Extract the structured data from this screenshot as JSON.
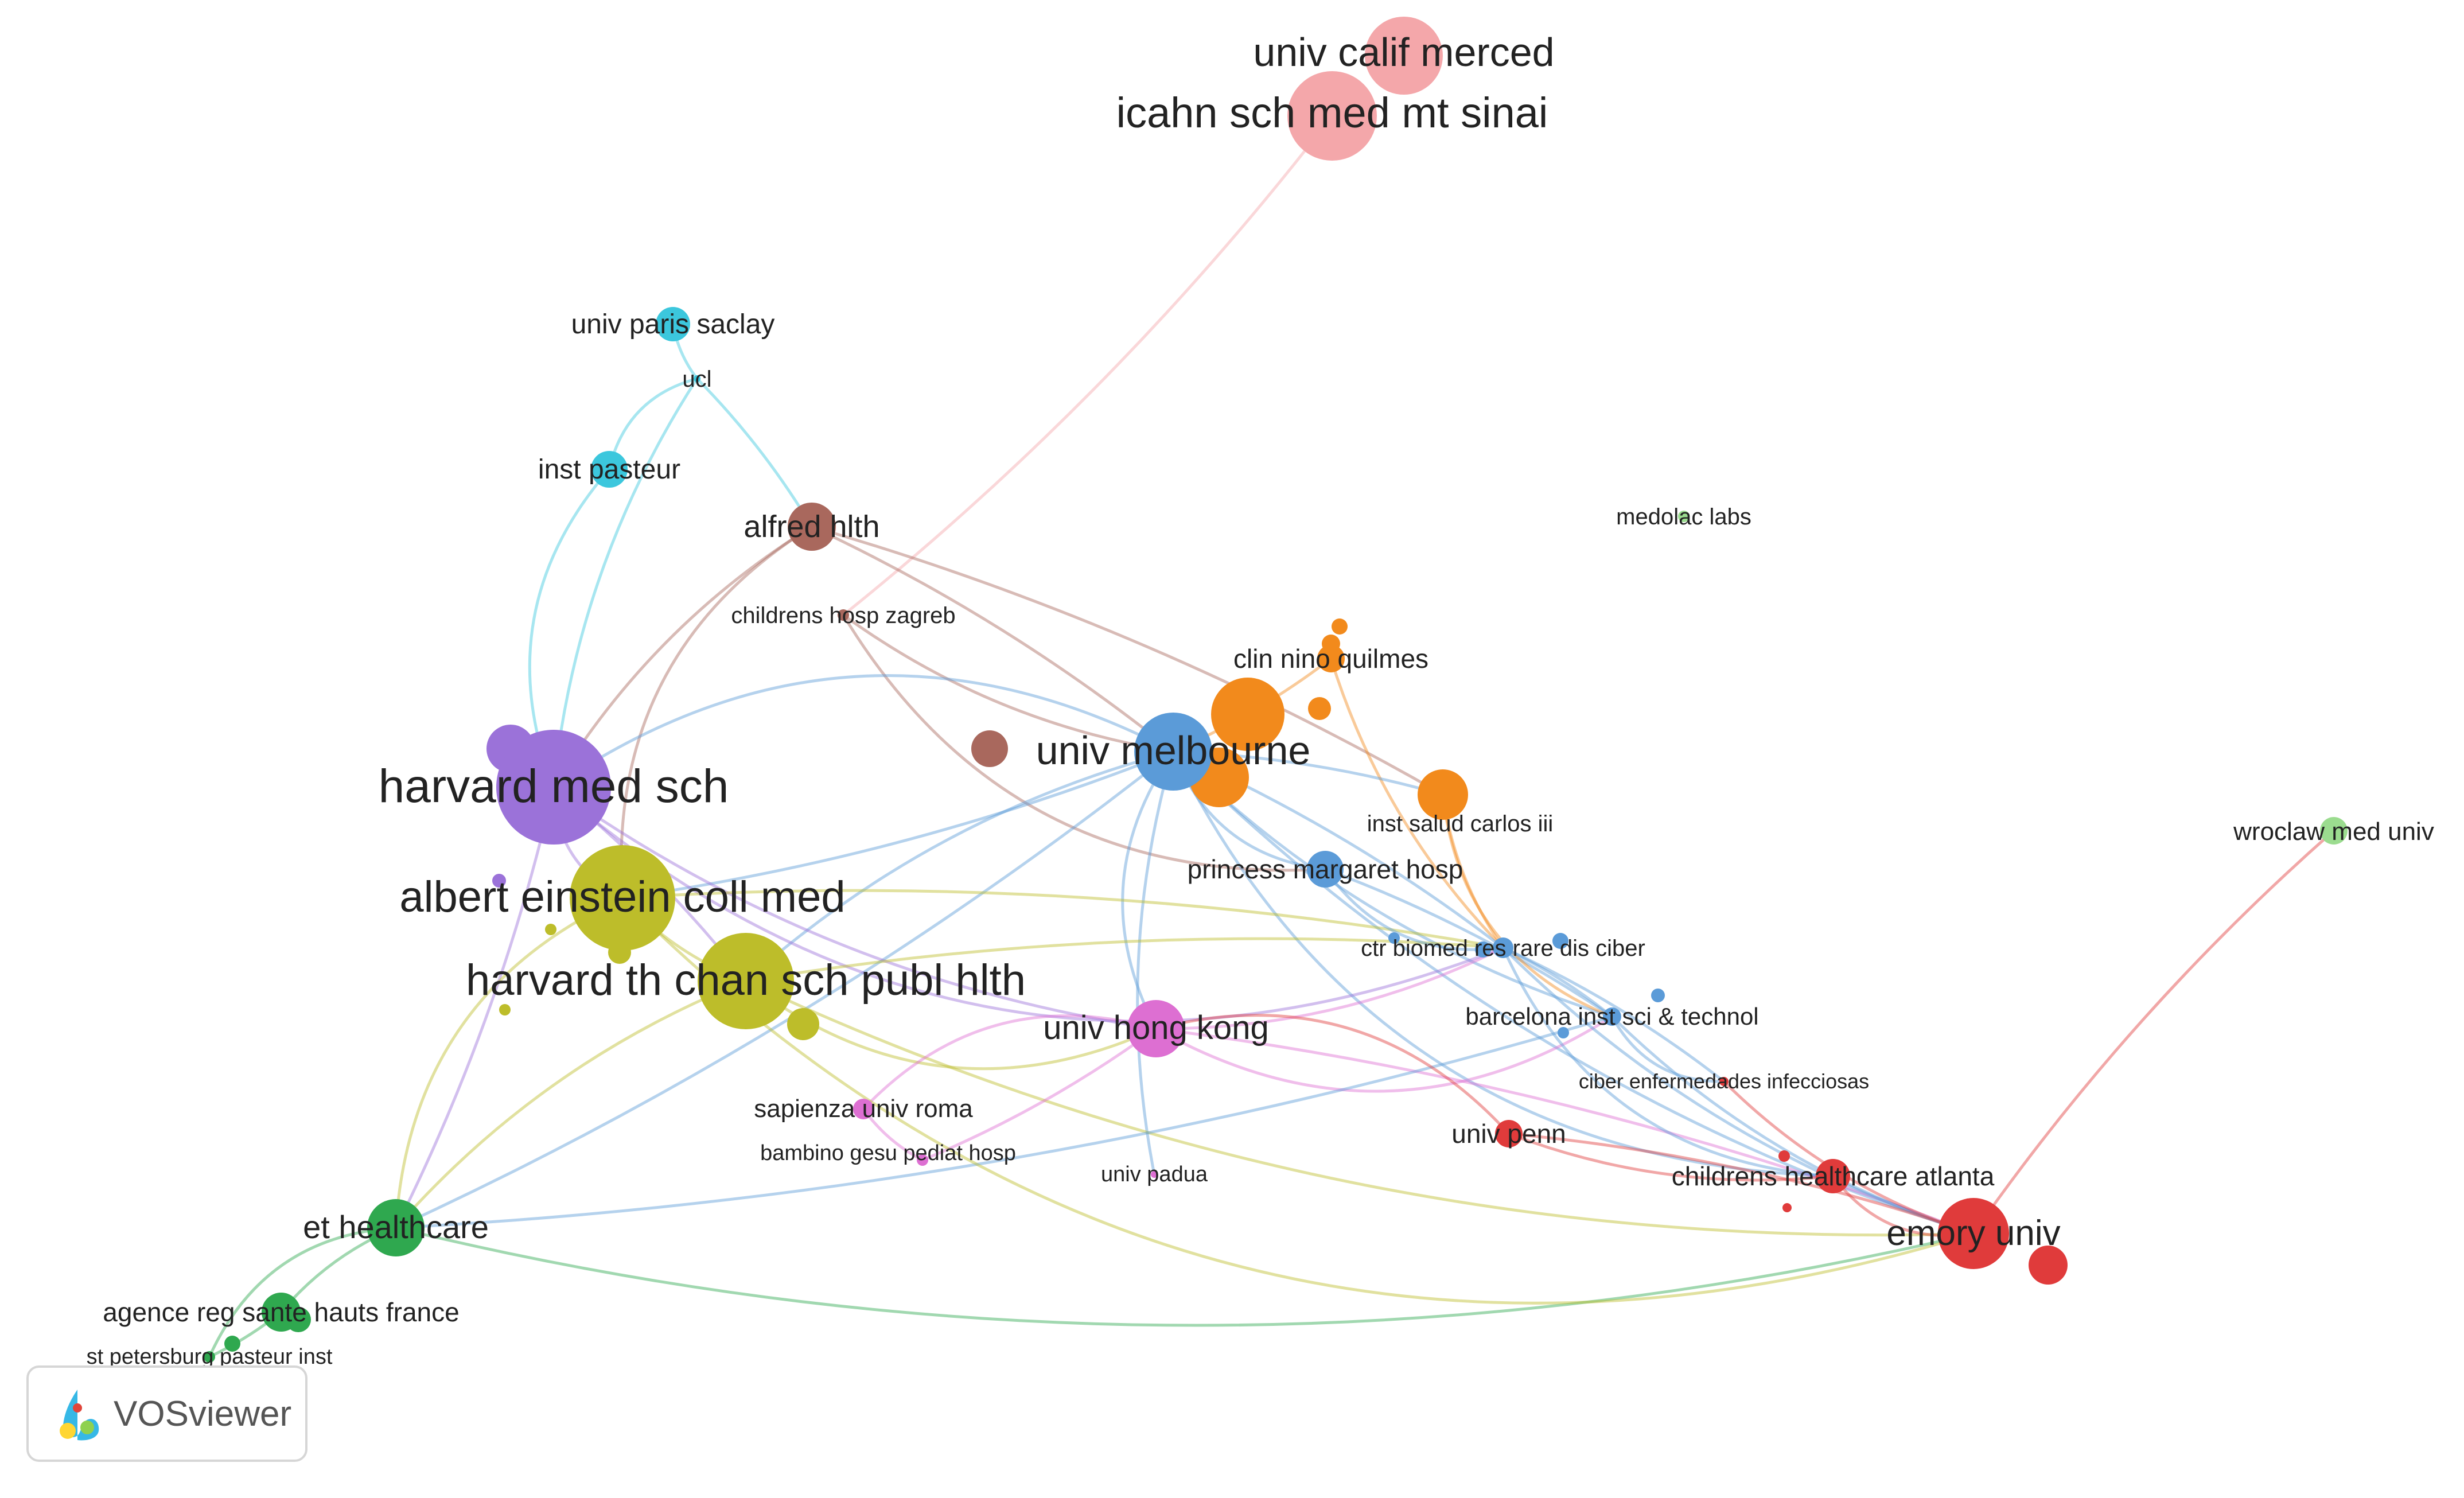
{
  "colors": {
    "pink": "#f4a7aa",
    "cyan": "#3cc7dd",
    "brown": "#a9685d",
    "purple": "#9b72d9",
    "olive": "#bdbd2a",
    "blue": "#5b9bd8",
    "orange": "#f28a1c",
    "magenta": "#dd6fd2",
    "green": "#2fa84f",
    "lightgreen": "#9bdc8f",
    "red": "#e03b3b"
  },
  "nodes": [
    {
      "id": "univ-calif-merced",
      "label": "univ calif merced",
      "color": "pink"
    },
    {
      "id": "icahn-sch-med-mt-sinai",
      "label": "icahn sch med mt sinai",
      "color": "pink"
    },
    {
      "id": "univ-paris-saclay",
      "label": "univ paris saclay",
      "color": "cyan"
    },
    {
      "id": "ucl",
      "label": "ucl",
      "color": "cyan"
    },
    {
      "id": "inst-pasteur",
      "label": "inst pasteur",
      "color": "cyan"
    },
    {
      "id": "alfred-hlth",
      "label": "alfred hlth",
      "color": "brown"
    },
    {
      "id": "childrens-hosp-zagreb",
      "label": "childrens hosp zagreb",
      "color": "brown"
    },
    {
      "id": "medolac-labs",
      "label": "medolac labs",
      "color": "lightgreen"
    },
    {
      "id": "clin-nino-quilmes",
      "label": "clin nino quilmes",
      "color": "orange"
    },
    {
      "id": "univ-melbourne",
      "label": "univ melbourne",
      "color": "blue"
    },
    {
      "id": "harvard-med-sch",
      "label": "harvard med sch",
      "color": "purple"
    },
    {
      "id": "inst-salud-carlos-iii",
      "label": "inst salud carlos iii",
      "color": "orange"
    },
    {
      "id": "wroclaw-med-univ",
      "label": "wroclaw med univ",
      "color": "lightgreen"
    },
    {
      "id": "princess-margaret-hosp",
      "label": "princess margaret hosp",
      "color": "blue"
    },
    {
      "id": "albert-einstein-coll-med",
      "label": "albert einstein coll med",
      "color": "olive"
    },
    {
      "id": "ctr-biomed-res-rare-dis-ciber",
      "label": "ctr biomed res rare dis ciber",
      "color": "blue"
    },
    {
      "id": "harvard-th-chan-sch-publ-hlth",
      "label": "harvard th chan sch publ hlth",
      "color": "olive"
    },
    {
      "id": "barcelona-inst-sci-technol",
      "label": "barcelona inst sci & technol",
      "color": "blue"
    },
    {
      "id": "univ-hong-kong",
      "label": "univ hong kong",
      "color": "magenta"
    },
    {
      "id": "ciber-enfermedades-infecciosas",
      "label": "ciber enfermedades infecciosas",
      "color": "red"
    },
    {
      "id": "sapienza-univ-roma",
      "label": "sapienza univ roma",
      "color": "magenta"
    },
    {
      "id": "univ-penn",
      "label": "univ penn",
      "color": "red"
    },
    {
      "id": "bambino-gesu-pediat-hosp",
      "label": "bambino gesu pediat hosp",
      "color": "magenta"
    },
    {
      "id": "univ-padua",
      "label": "univ padua",
      "color": "magenta"
    },
    {
      "id": "childrens-healthcare-atlanta",
      "label": "childrens healthcare atlanta",
      "color": "red"
    },
    {
      "id": "et-healthcare",
      "label": "et healthcare",
      "color": "green"
    },
    {
      "id": "emory-univ",
      "label": "emory univ",
      "color": "red"
    },
    {
      "id": "agence-reg-sante-hauts-france",
      "label": "agence reg sante hauts france",
      "color": "green"
    },
    {
      "id": "st-petersburg-pasteur-inst",
      "label": "st petersburg pasteur inst",
      "color": "green"
    }
  ],
  "links": [
    [
      "icahn-sch-med-mt-sinai",
      "childrens-hosp-zagreb"
    ],
    [
      "univ-paris-saclay",
      "ucl"
    ],
    [
      "ucl",
      "inst-pasteur"
    ],
    [
      "ucl",
      "alfred-hlth"
    ],
    [
      "ucl",
      "harvard-med-sch"
    ],
    [
      "inst-pasteur",
      "harvard-med-sch"
    ],
    [
      "alfred-hlth",
      "univ-melbourne"
    ],
    [
      "alfred-hlth",
      "harvard-med-sch"
    ],
    [
      "alfred-hlth",
      "albert-einstein-coll-med"
    ],
    [
      "alfred-hlth",
      "inst-salud-carlos-iii"
    ],
    [
      "childrens-hosp-zagreb",
      "univ-melbourne"
    ],
    [
      "childrens-hosp-zagreb",
      "princess-margaret-hosp"
    ],
    [
      "clin-nino-quilmes",
      "univ-melbourne"
    ],
    [
      "clin-nino-quilmes",
      "ctr-biomed-res-rare-dis-ciber"
    ],
    [
      "univ-melbourne",
      "harvard-med-sch"
    ],
    [
      "univ-melbourne",
      "albert-einstein-coll-med"
    ],
    [
      "univ-melbourne",
      "harvard-th-chan-sch-publ-hlth"
    ],
    [
      "univ-melbourne",
      "univ-hong-kong"
    ],
    [
      "univ-melbourne",
      "ctr-biomed-res-rare-dis-ciber"
    ],
    [
      "univ-melbourne",
      "barcelona-inst-sci-technol"
    ],
    [
      "univ-melbourne",
      "princess-margaret-hosp"
    ],
    [
      "univ-melbourne",
      "inst-salud-carlos-iii"
    ],
    [
      "univ-melbourne",
      "emory-univ"
    ],
    [
      "univ-melbourne",
      "childrens-healthcare-atlanta"
    ],
    [
      "univ-melbourne",
      "et-healthcare"
    ],
    [
      "univ-melbourne",
      "univ-padua"
    ],
    [
      "harvard-med-sch",
      "albert-einstein-coll-med"
    ],
    [
      "harvard-med-sch",
      "harvard-th-chan-sch-publ-hlth"
    ],
    [
      "harvard-med-sch",
      "univ-hong-kong"
    ],
    [
      "harvard-med-sch",
      "ctr-biomed-res-rare-dis-ciber"
    ],
    [
      "harvard-med-sch",
      "et-healthcare"
    ],
    [
      "albert-einstein-coll-med",
      "harvard-th-chan-sch-publ-hlth"
    ],
    [
      "albert-einstein-coll-med",
      "et-healthcare"
    ],
    [
      "albert-einstein-coll-med",
      "ctr-biomed-res-rare-dis-ciber"
    ],
    [
      "harvard-th-chan-sch-publ-hlth",
      "et-healthcare"
    ],
    [
      "harvard-th-chan-sch-publ-hlth",
      "univ-hong-kong"
    ],
    [
      "harvard-th-chan-sch-publ-hlth",
      "ctr-biomed-res-rare-dis-ciber"
    ],
    [
      "harvard-th-chan-sch-publ-hlth",
      "emory-univ"
    ],
    [
      "univ-hong-kong",
      "sapienza-univ-roma"
    ],
    [
      "univ-hong-kong",
      "bambino-gesu-pediat-hosp"
    ],
    [
      "univ-hong-kong",
      "ctr-biomed-res-rare-dis-ciber"
    ],
    [
      "univ-hong-kong",
      "barcelona-inst-sci-technol"
    ],
    [
      "univ-hong-kong",
      "emory-univ"
    ],
    [
      "sapienza-univ-roma",
      "bambino-gesu-pediat-hosp"
    ],
    [
      "princess-margaret-hosp",
      "ctr-biomed-res-rare-dis-ciber"
    ],
    [
      "princess-margaret-hosp",
      "barcelona-inst-sci-technol"
    ],
    [
      "inst-salud-carlos-iii",
      "ctr-biomed-res-rare-dis-ciber"
    ],
    [
      "inst-salud-carlos-iii",
      "barcelona-inst-sci-technol"
    ],
    [
      "ctr-biomed-res-rare-dis-ciber",
      "barcelona-inst-sci-technol"
    ],
    [
      "ctr-biomed-res-rare-dis-ciber",
      "emory-univ"
    ],
    [
      "ctr-biomed-res-rare-dis-ciber",
      "childrens-healthcare-atlanta"
    ],
    [
      "ctr-biomed-res-rare-dis-ciber",
      "ciber-enfermedades-infecciosas"
    ],
    [
      "barcelona-inst-sci-technol",
      "emory-univ"
    ],
    [
      "barcelona-inst-sci-technol",
      "ciber-enfermedades-infecciosas"
    ],
    [
      "barcelona-inst-sci-technol",
      "et-healthcare"
    ],
    [
      "ciber-enfermedades-infecciosas",
      "emory-univ"
    ],
    [
      "childrens-healthcare-atlanta",
      "emory-univ"
    ],
    [
      "univ-penn",
      "emory-univ"
    ],
    [
      "univ-penn",
      "childrens-healthcare-atlanta"
    ],
    [
      "univ-penn",
      "univ-hong-kong"
    ],
    [
      "emory-univ",
      "wroclaw-med-univ"
    ],
    [
      "et-healthcare",
      "agence-reg-sante-hauts-france"
    ],
    [
      "et-healthcare",
      "st-petersburg-pasteur-inst"
    ],
    [
      "agence-reg-sante-hauts-france",
      "st-petersburg-pasteur-inst"
    ],
    [
      "et-healthcare",
      "emory-univ"
    ],
    [
      "albert-einstein-coll-med",
      "emory-univ"
    ]
  ],
  "badge": {
    "label": "VOSviewer"
  }
}
